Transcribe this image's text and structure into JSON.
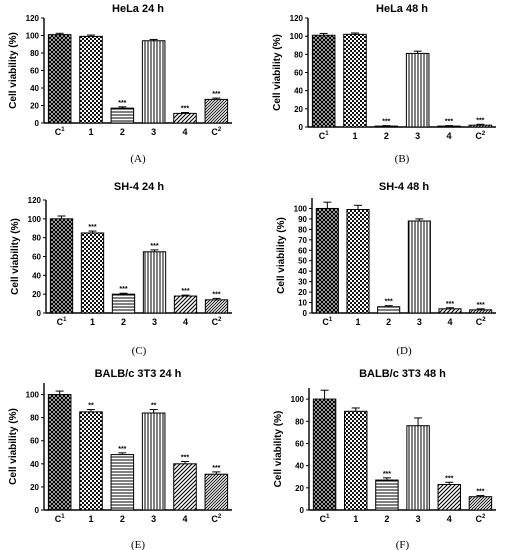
{
  "chart_data": [
    {
      "type": "bar",
      "panel": "(A)",
      "title": "HeLa 24 h",
      "ylabel": "Cell viability (%)",
      "ylim": [
        0,
        120
      ],
      "yticks": [
        "0",
        "20",
        "40",
        "60",
        "80",
        "100",
        "120"
      ],
      "categories": [
        "C1",
        "1",
        "2",
        "3",
        "4",
        "C2"
      ],
      "values": [
        101,
        99,
        17,
        94,
        11,
        27
      ],
      "errors": [
        1.5,
        1.5,
        1.5,
        1.5,
        1,
        1.5
      ],
      "significance": [
        "",
        "",
        "***",
        "",
        "***",
        "***"
      ]
    },
    {
      "type": "bar",
      "panel": "(B)",
      "title": "HeLa 48 h",
      "ylabel": "Cell viability (%)",
      "ylim": [
        0,
        120
      ],
      "yticks": [
        "0",
        "20",
        "40",
        "60",
        "80",
        "100",
        "120"
      ],
      "categories": [
        "C1",
        "1",
        "2",
        "3",
        "4",
        "C2"
      ],
      "values": [
        101,
        102,
        1,
        81,
        1,
        2
      ],
      "errors": [
        2,
        1.5,
        0.5,
        2.5,
        0.5,
        1
      ],
      "significance": [
        "",
        "",
        "***",
        "",
        "***",
        "***"
      ]
    },
    {
      "type": "bar",
      "panel": "(C)",
      "title": "SH-4 24 h",
      "ylabel": "Cell viability (%)",
      "ylim": [
        0,
        120
      ],
      "yticks": [
        "0",
        "20",
        "40",
        "60",
        "80",
        "100",
        "120"
      ],
      "categories": [
        "C1",
        "1",
        "2",
        "3",
        "4",
        "C2"
      ],
      "values": [
        100,
        85,
        20,
        65,
        18,
        14
      ],
      "errors": [
        3,
        2,
        1,
        2,
        1,
        1.5
      ],
      "significance": [
        "",
        "***",
        "***",
        "***",
        "***",
        "***"
      ]
    },
    {
      "type": "bar",
      "panel": "(D)",
      "title": "SH-4 48 h",
      "ylabel": "Cell viability (%)",
      "ylim": [
        0,
        110
      ],
      "yticks": [
        "0",
        "10",
        "20",
        "30",
        "40",
        "50",
        "60",
        "70",
        "80",
        "90",
        "100"
      ],
      "categories": [
        "C1",
        "1",
        "2",
        "3",
        "4",
        "C2"
      ],
      "values": [
        100,
        99,
        6,
        88,
        4,
        3
      ],
      "errors": [
        6,
        4,
        1,
        2,
        1,
        1
      ],
      "significance": [
        "",
        "",
        "***",
        "",
        "***",
        "***"
      ]
    },
    {
      "type": "bar",
      "panel": "(E)",
      "title": "BALB/c 3T3 24 h",
      "ylabel": "Cell viability (%)",
      "ylim": [
        0,
        110
      ],
      "yticks": [
        "0",
        "20",
        "40",
        "60",
        "80",
        "100"
      ],
      "categories": [
        "C1",
        "1",
        "2",
        "3",
        "4",
        "C2"
      ],
      "values": [
        100,
        85,
        48,
        84,
        40,
        31
      ],
      "errors": [
        3,
        2,
        1.5,
        3,
        2,
        2
      ],
      "significance": [
        "",
        "**",
        "***",
        "**",
        "***",
        "***"
      ]
    },
    {
      "type": "bar",
      "panel": "(F)",
      "title": "BALB/c 3T3 48 h",
      "ylabel": "Cell viability (%)",
      "ylim": [
        0,
        110
      ],
      "yticks": [
        "0",
        "20",
        "40",
        "60",
        "80",
        "100"
      ],
      "categories": [
        "C1",
        "1",
        "2",
        "3",
        "4",
        "C2"
      ],
      "values": [
        100,
        89,
        27,
        76,
        23,
        12
      ],
      "errors": [
        8,
        3,
        2,
        7,
        2,
        1
      ],
      "significance": [
        "",
        "",
        "***",
        "",
        "***",
        "***"
      ]
    }
  ]
}
